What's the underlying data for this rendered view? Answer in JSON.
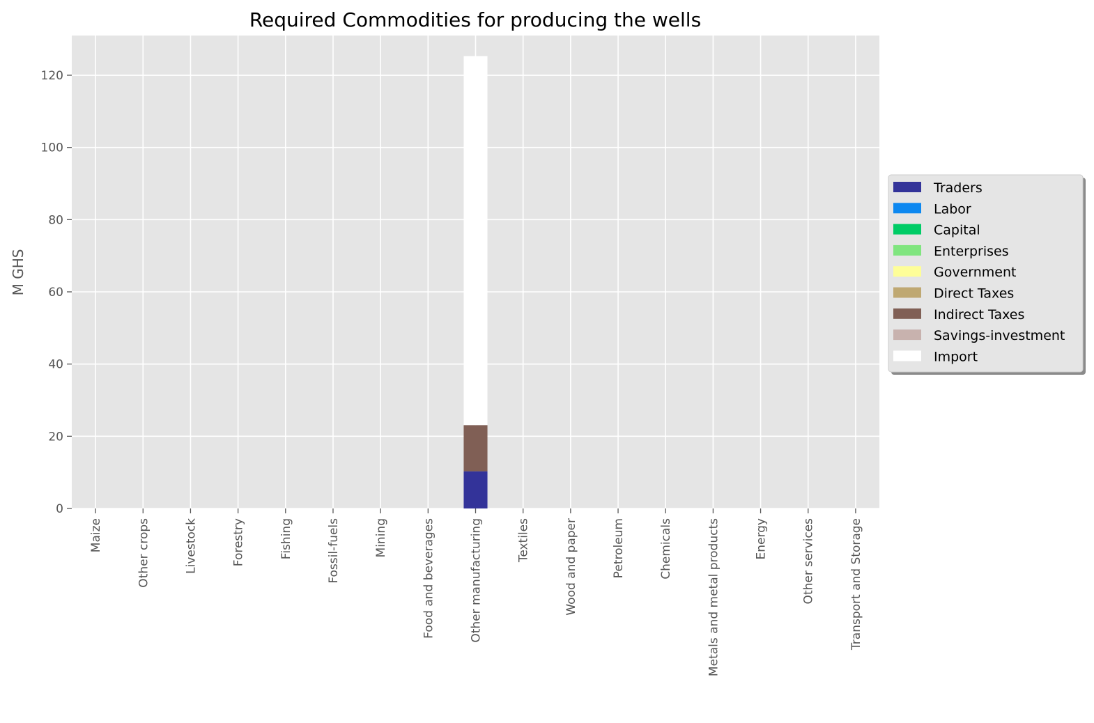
{
  "chart_data": {
    "type": "bar",
    "stacked": true,
    "title": "Required Commodities for producing the wells",
    "xlabel": "",
    "ylabel": "M GHS",
    "ylim": [
      0,
      131
    ],
    "yticks": [
      0,
      20,
      40,
      60,
      80,
      100,
      120
    ],
    "grid": true,
    "legend_position": "right",
    "categories": [
      "Maize",
      "Other crops",
      "Livestock",
      "Forestry",
      "Fishing",
      "Fossil-fuels",
      "Mining",
      "Food and beverages",
      "Other manufacturing",
      "Textiles",
      "Wood and paper",
      "Petroleum",
      "Chemicals",
      "Metals and metal products",
      "Energy",
      "Other services",
      "Transport and Storage"
    ],
    "series": [
      {
        "name": "Traders",
        "color": "#333399",
        "values": [
          0,
          0,
          0,
          0,
          0,
          0,
          0,
          0,
          10.3,
          0,
          0,
          0,
          0,
          0,
          0,
          0,
          0
        ]
      },
      {
        "name": "Labor",
        "color": "#0d88f0",
        "values": [
          0,
          0,
          0,
          0,
          0,
          0,
          0,
          0,
          0,
          0,
          0,
          0,
          0,
          0,
          0,
          0,
          0
        ]
      },
      {
        "name": "Capital",
        "color": "#00cc66",
        "values": [
          0,
          0,
          0,
          0,
          0,
          0,
          0,
          0,
          0,
          0,
          0,
          0,
          0,
          0,
          0,
          0,
          0
        ]
      },
      {
        "name": "Enterprises",
        "color": "#80e57f",
        "values": [
          0,
          0,
          0,
          0,
          0,
          0,
          0,
          0,
          0,
          0,
          0,
          0,
          0,
          0,
          0,
          0,
          0
        ]
      },
      {
        "name": "Government",
        "color": "#fefe98",
        "values": [
          0,
          0,
          0,
          0,
          0,
          0,
          0,
          0,
          0,
          0,
          0,
          0,
          0,
          0,
          0,
          0,
          0
        ]
      },
      {
        "name": "Direct Taxes",
        "color": "#bfa872",
        "values": [
          0,
          0,
          0,
          0,
          0,
          0,
          0,
          0,
          0,
          0,
          0,
          0,
          0,
          0,
          0,
          0,
          0
        ]
      },
      {
        "name": "Indirect Taxes",
        "color": "#805f55",
        "values": [
          0,
          0,
          0,
          0,
          0,
          0,
          0,
          0,
          12.8,
          0,
          0,
          0,
          0,
          0,
          0,
          0,
          0
        ]
      },
      {
        "name": "Savings-investment",
        "color": "#c8b2ae",
        "values": [
          0,
          0,
          0,
          0,
          0,
          0,
          0,
          0,
          0,
          0,
          0,
          0,
          0,
          0,
          0,
          0,
          0
        ]
      },
      {
        "name": "Import",
        "color": "#ffffff",
        "values": [
          0,
          0,
          0,
          0,
          0,
          0,
          0,
          0,
          102.2,
          0,
          0,
          0,
          0,
          0,
          0,
          0,
          0
        ]
      }
    ]
  }
}
